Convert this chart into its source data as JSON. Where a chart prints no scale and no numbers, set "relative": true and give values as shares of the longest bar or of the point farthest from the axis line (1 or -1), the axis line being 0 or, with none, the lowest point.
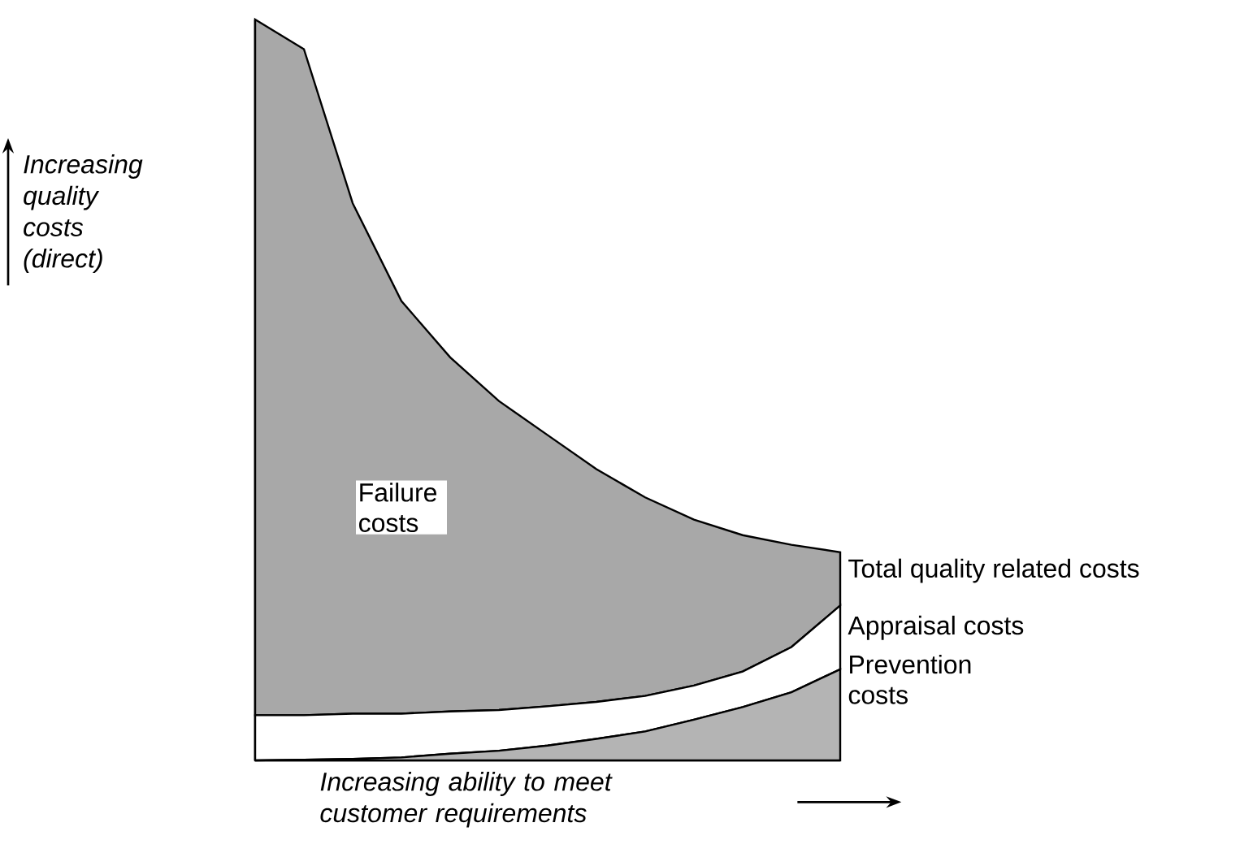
{
  "chart_data": {
    "type": "area",
    "relative": true,
    "stacked": true,
    "categories": [
      null,
      null,
      null,
      null,
      null,
      null,
      null,
      null,
      null,
      null,
      null,
      null,
      null
    ],
    "series": [
      {
        "name": "Prevention costs",
        "color": "#b4b4b4",
        "values": [
          0,
          0.001,
          0.002,
          0.004,
          0.009,
          0.013,
          0.02,
          0.029,
          0.039,
          0.055,
          0.072,
          0.092,
          0.123
        ]
      },
      {
        "name": "Appraisal costs",
        "color": "#ffffff",
        "values": [
          0.061,
          0.06,
          0.061,
          0.059,
          0.057,
          0.055,
          0.053,
          0.05,
          0.048,
          0.046,
          0.048,
          0.061,
          0.086
        ]
      },
      {
        "name": "Failure costs",
        "color": "#a8a8a8",
        "values": [
          0.939,
          0.899,
          0.689,
          0.557,
          0.478,
          0.417,
          0.366,
          0.314,
          0.268,
          0.224,
          0.184,
          0.138,
          0.072
        ]
      }
    ],
    "xlabel": "Increasing ability to meet customer requirements",
    "ylabel": "Increasing quality costs (direct)",
    "annotations": [
      "Total quality related costs"
    ]
  }
}
